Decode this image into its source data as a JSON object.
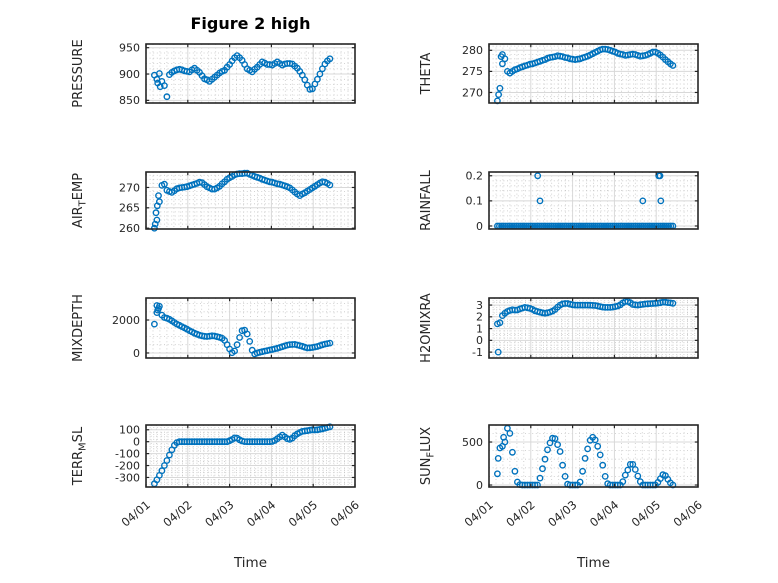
{
  "figure": {
    "title": "Figure 2 high",
    "xlabel": "Time",
    "xtick_labels": [
      "04/01",
      "04/02",
      "04/03",
      "04/04",
      "04/05",
      "04/06"
    ],
    "xlim_days": [
      0,
      5
    ],
    "grid": "major solid, minor dotted, box on, ticks in",
    "colors": {
      "marker": "#0072BD",
      "frame": "#262626",
      "text": "#262626",
      "title": "#000000",
      "grid_major": "#d8d8d8",
      "grid_minor": "#c6c6c6",
      "background": "#ffffff"
    }
  },
  "chart_data": [
    {
      "id": "pressure",
      "type": "scatter",
      "ylabel": "PRESSURE",
      "ylabel_tex": [
        [
          "PRESSURE",
          0
        ]
      ],
      "x_unit": "days after 04/01",
      "x_start": 0.2,
      "x_step": 0.06,
      "ylim": [
        845,
        957
      ],
      "yticks": [
        850,
        900,
        950
      ],
      "ytick_labels": [
        "850",
        "900",
        "950"
      ],
      "y_minor_step": 10,
      "x_minor_per_day": 6,
      "y_values": [
        898,
        890,
        901,
        886,
        878,
        857,
        899,
        903,
        906,
        908,
        909,
        908,
        906,
        905,
        904,
        908,
        911,
        907,
        903,
        897,
        891,
        889,
        886,
        890,
        894,
        898,
        902,
        905,
        907,
        913,
        918,
        925,
        931,
        935,
        931,
        926,
        918,
        910,
        907,
        904,
        909,
        913,
        918,
        923,
        921,
        918,
        918,
        917,
        920,
        923,
        920,
        917,
        919,
        920,
        920,
        919,
        915,
        911,
        905,
        898,
        889,
        879,
        871,
        872,
        881,
        890,
        900,
        910,
        919,
        925,
        929
      ],
      "extra_points": [
        [
          0.28,
          883
        ],
        [
          0.34,
          876
        ]
      ]
    },
    {
      "id": "theta",
      "type": "scatter",
      "ylabel": "THETA",
      "ylabel_tex": [
        [
          "THETA",
          0
        ]
      ],
      "x_unit": "days after 04/01",
      "x_start": 0.2,
      "x_step": 0.06,
      "ylim": [
        267.5,
        281.5
      ],
      "yticks": [
        270,
        275,
        280
      ],
      "ytick_labels": [
        "270",
        "275",
        "280"
      ],
      "y_minor_step": 1,
      "x_minor_per_day": 6,
      "y_values": [
        268,
        271,
        279,
        278,
        275,
        274.6,
        275,
        275.4,
        275.6,
        275.9,
        276.1,
        276.3,
        276.5,
        276.7,
        276.8,
        277,
        277.2,
        277.4,
        277.6,
        277.8,
        278.1,
        278.3,
        278.4,
        278.5,
        278.7,
        278.6,
        278.5,
        278.3,
        278.2,
        278,
        277.9,
        277.8,
        277.9,
        278,
        278.2,
        278.4,
        278.6,
        278.9,
        279.2,
        279.5,
        279.8,
        280.1,
        280.3,
        280.3,
        280.2,
        280,
        279.8,
        279.6,
        279.3,
        279.1,
        279,
        278.8,
        278.9,
        279,
        279.1,
        279,
        278.8,
        278.6,
        278.7,
        278.8,
        279,
        279.3,
        279.6,
        279.6,
        279.3,
        278.9,
        278.4,
        277.8,
        277.3,
        276.8,
        276.4
      ],
      "extra_points": [
        [
          0.23,
          269.5
        ],
        [
          0.29,
          278.5
        ],
        [
          0.32,
          276.8
        ]
      ]
    },
    {
      "id": "air-temp",
      "type": "scatter",
      "ylabel": "AIR_TEMP",
      "ylabel_tex": [
        [
          "AIR",
          0
        ],
        [
          "T",
          1
        ],
        [
          "EMP",
          0
        ]
      ],
      "x_unit": "days after 04/01",
      "x_start": 0.2,
      "x_step": 0.06,
      "ylim": [
        259.8,
        273.8
      ],
      "yticks": [
        260,
        265,
        270
      ],
      "ytick_labels": [
        "260",
        "265",
        "270"
      ],
      "y_minor_step": 1,
      "x_minor_per_day": 6,
      "y_values": [
        260,
        262,
        266.5,
        270.5,
        270.8,
        269.3,
        269,
        268.8,
        269.2,
        269.7,
        269.9,
        270,
        270.1,
        270.2,
        270.4,
        270.6,
        270.8,
        271,
        271.3,
        271.2,
        270.7,
        270.2,
        269.9,
        269.6,
        269.6,
        269.9,
        270.3,
        270.9,
        271.4,
        272,
        272.4,
        272.7,
        273.1,
        273.3,
        273.4,
        273.4,
        273.5,
        273.5,
        273.2,
        273,
        272.7,
        272.5,
        272.3,
        272,
        271.8,
        271.6,
        271.4,
        271.3,
        271.1,
        270.9,
        270.8,
        270.6,
        270.4,
        270.2,
        269.9,
        269.4,
        268.9,
        268.4,
        268,
        268.4,
        268.7,
        269.1,
        269.5,
        269.9,
        270.3,
        270.7,
        271.1,
        271.4,
        271.3,
        271,
        270.6
      ],
      "extra_points": [
        [
          0.22,
          261
        ],
        [
          0.24,
          263.8
        ],
        [
          0.27,
          265.5
        ],
        [
          0.3,
          268
        ]
      ]
    },
    {
      "id": "rainfall",
      "type": "scatter",
      "ylabel": "RAINFALL",
      "ylabel_tex": [
        [
          "RAINFALL",
          0
        ]
      ],
      "x_unit": "days after 04/01",
      "x_start": 0.2,
      "x_step": 0.05,
      "ylim": [
        -0.012,
        0.215
      ],
      "yticks": [
        0,
        0.1,
        0.2
      ],
      "ytick_labels": [
        "0",
        "0.1",
        "0.2"
      ],
      "y_minor_step": 0.02,
      "x_minor_per_day": 6,
      "y_values": [
        0,
        0,
        0,
        0,
        0,
        0,
        0,
        0,
        0,
        0,
        0,
        0,
        0,
        0,
        0,
        0,
        0,
        0,
        0,
        0,
        0,
        0,
        0,
        0,
        0,
        0,
        0,
        0,
        0,
        0,
        0,
        0,
        0,
        0,
        0,
        0,
        0,
        0,
        0,
        0,
        0,
        0,
        0,
        0,
        0,
        0,
        0,
        0,
        0,
        0,
        0,
        0,
        0,
        0,
        0,
        0,
        0,
        0,
        0,
        0,
        0,
        0,
        0,
        0,
        0,
        0,
        0,
        0,
        0,
        0,
        0,
        0,
        0,
        0,
        0,
        0,
        0,
        0,
        0,
        0,
        0,
        0,
        0,
        0,
        0
      ],
      "extra_points": [
        [
          1.165,
          0.2
        ],
        [
          1.22,
          0.1
        ],
        [
          3.68,
          0.1
        ],
        [
          4.06,
          0.2
        ],
        [
          4.09,
          0.2
        ],
        [
          4.11,
          0.1
        ]
      ]
    },
    {
      "id": "mixdepth",
      "type": "scatter",
      "ylabel": "MIXDEPTH",
      "ylabel_tex": [
        [
          "MIXDEPTH",
          0
        ]
      ],
      "x_unit": "days after 04/01",
      "x_start": 0.2,
      "x_step": 0.06,
      "ylim": [
        -305,
        3335
      ],
      "yticks": [
        0,
        2000
      ],
      "ytick_labels": [
        "0",
        "2000"
      ],
      "y_minor_step": 500,
      "x_minor_per_day": 6,
      "y_values": [
        1750,
        2450,
        2830,
        2300,
        2150,
        2110,
        2040,
        1950,
        1850,
        1750,
        1680,
        1600,
        1520,
        1440,
        1360,
        1280,
        1200,
        1140,
        1080,
        1040,
        1010,
        1000,
        1020,
        1040,
        1030,
        990,
        950,
        890,
        760,
        500,
        240,
        15,
        120,
        500,
        940,
        1350,
        1390,
        1150,
        700,
        170,
        -60,
        0,
        40,
        80,
        115,
        145,
        180,
        210,
        245,
        285,
        330,
        380,
        430,
        475,
        505,
        515,
        520,
        485,
        450,
        405,
        350,
        300,
        315,
        330,
        360,
        395,
        450,
        495,
        540,
        570,
        600
      ],
      "extra_points": [
        [
          0.26,
          2880
        ],
        [
          0.28,
          2600
        ],
        [
          0.3,
          2700
        ]
      ]
    },
    {
      "id": "h2omixra",
      "type": "scatter",
      "ylabel": "H2OMIXRA",
      "ylabel_tex": [
        [
          "H2OMIXRA",
          0
        ]
      ],
      "x_unit": "days after 04/01",
      "x_start": 0.2,
      "x_step": 0.06,
      "ylim": [
        -1.5,
        3.6
      ],
      "yticks": [
        -1,
        0,
        1,
        2,
        3
      ],
      "ytick_labels": [
        "-1",
        "0",
        "1",
        "2",
        "3"
      ],
      "y_minor_step": 0.2,
      "x_minor_per_day": 8,
      "y_values": [
        1.4,
        1.5,
        2.1,
        2.3,
        2.45,
        2.54,
        2.6,
        2.57,
        2.58,
        2.67,
        2.74,
        2.8,
        2.77,
        2.72,
        2.63,
        2.51,
        2.45,
        2.39,
        2.34,
        2.31,
        2.34,
        2.4,
        2.49,
        2.62,
        2.83,
        3,
        3.1,
        3.13,
        3.13,
        3.07,
        3.02,
        3,
        3,
        3,
        3,
        3,
        3,
        2.99,
        2.97,
        2.96,
        2.92,
        2.87,
        2.83,
        2.8,
        2.8,
        2.8,
        2.83,
        2.87,
        2.92,
        3.02,
        3.18,
        3.3,
        3.3,
        3.2,
        3.05,
        3.02,
        3,
        3.03,
        3.06,
        3.09,
        3.11,
        3.12,
        3.13,
        3.15,
        3.17,
        3.2,
        3.25,
        3.24,
        3.21,
        3.18,
        3.15
      ],
      "extra_points": [
        [
          0.22,
          -1
        ]
      ]
    },
    {
      "id": "terr-msl",
      "type": "scatter",
      "ylabel": "TERR_MSL",
      "ylabel_tex": [
        [
          "TERR",
          0
        ],
        [
          "M",
          1
        ],
        [
          "SL",
          0
        ]
      ],
      "x_unit": "days after 04/01",
      "x_start": 0.2,
      "x_step": 0.06,
      "ylim": [
        -380,
        140
      ],
      "yticks": [
        -300,
        -200,
        -100,
        0,
        100
      ],
      "ytick_labels": [
        "-300",
        "-200",
        "-100",
        "0",
        "100"
      ],
      "y_minor_step": 20,
      "x_minor_per_day": 8,
      "y_values": [
        -352,
        -320,
        -283,
        -243,
        -200,
        -158,
        -112,
        -68,
        -30,
        -8,
        0,
        0,
        0,
        0,
        0,
        0,
        0,
        0,
        0,
        0,
        0,
        0,
        0,
        0,
        0,
        0,
        0,
        0,
        0,
        0,
        8,
        18,
        32,
        30,
        16,
        6,
        1,
        0,
        0,
        0,
        0,
        0,
        0,
        0,
        0,
        0,
        0,
        2,
        10,
        25,
        40,
        55,
        40,
        25,
        20,
        30,
        50,
        65,
        77,
        86,
        90,
        92,
        96,
        100,
        98,
        100,
        103,
        108,
        113,
        119,
        125
      ],
      "extra_points": []
    },
    {
      "id": "sun-flux",
      "type": "scatter",
      "ylabel": "SUN_FLUX",
      "ylabel_tex": [
        [
          "SUN",
          0
        ],
        [
          "F",
          1
        ],
        [
          "LUX",
          0
        ]
      ],
      "x_unit": "days after 04/01",
      "x_start": 0.2,
      "x_step": 0.06,
      "ylim": [
        -23,
        698
      ],
      "yticks": [
        0,
        500
      ],
      "ytick_labels": [
        "0",
        "500"
      ],
      "y_minor_step": 100,
      "x_minor_per_day": 6,
      "y_values": [
        130,
        430,
        450,
        500,
        660,
        600,
        380,
        160,
        35,
        5,
        0,
        0,
        0,
        0,
        0,
        0,
        0,
        80,
        190,
        300,
        410,
        490,
        545,
        540,
        470,
        390,
        230,
        100,
        10,
        0,
        0,
        0,
        0,
        35,
        160,
        310,
        420,
        520,
        555,
        525,
        450,
        350,
        230,
        100,
        15,
        0,
        0,
        0,
        0,
        0,
        40,
        115,
        175,
        240,
        240,
        180,
        105,
        40,
        0,
        0,
        0,
        0,
        0,
        0,
        30,
        75,
        120,
        110,
        65,
        25,
        0
      ],
      "extra_points": [
        [
          0.22,
          310
        ],
        [
          0.35,
          555
        ]
      ]
    }
  ]
}
